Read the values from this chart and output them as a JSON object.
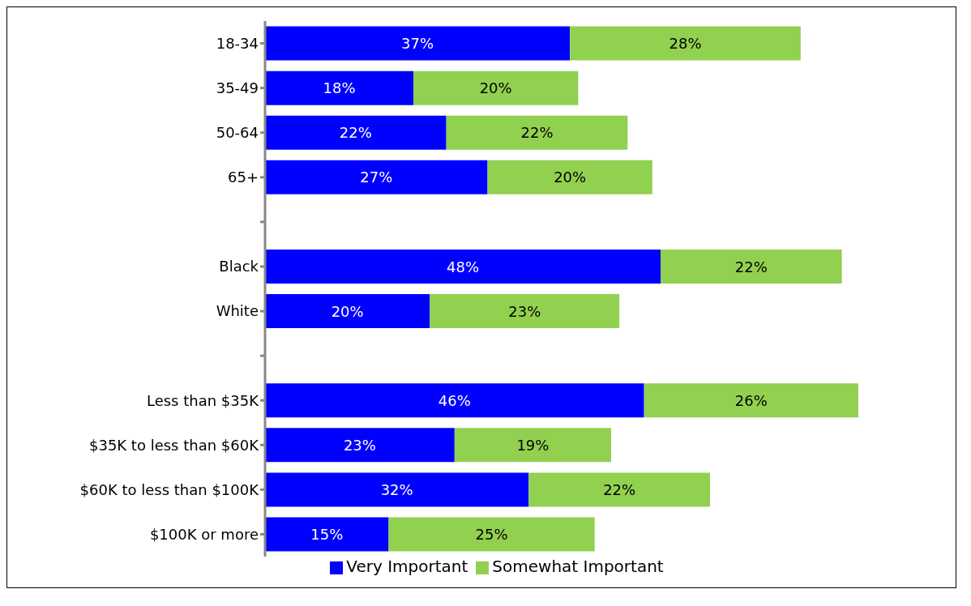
{
  "chart_data": {
    "type": "bar",
    "orientation": "horizontal",
    "stacked": true,
    "categories": [
      "18-34",
      "35-49",
      "50-64",
      "65+",
      null,
      "Black",
      "White",
      null,
      "Less than $35K",
      "$35K to less than $60K",
      "$60K to less than $100K",
      "$100K or more"
    ],
    "series": [
      {
        "name": "Very Important",
        "color": "#0000ff",
        "values": [
          37,
          18,
          22,
          27,
          null,
          48,
          20,
          null,
          46,
          23,
          32,
          15
        ],
        "value_labels": [
          "37%",
          "18%",
          "22%",
          "27%",
          null,
          "48%",
          "20%",
          null,
          "46%",
          "23%",
          "32%",
          "15%"
        ]
      },
      {
        "name": "Somewhat Important",
        "color": "#92d050",
        "values": [
          28,
          20,
          22,
          20,
          null,
          22,
          23,
          null,
          26,
          19,
          22,
          25
        ],
        "value_labels": [
          "28%",
          "20%",
          "22%",
          "20%",
          null,
          "22%",
          "23%",
          null,
          "26%",
          "19%",
          "22%",
          "25%"
        ]
      }
    ],
    "legend": "bottom"
  }
}
